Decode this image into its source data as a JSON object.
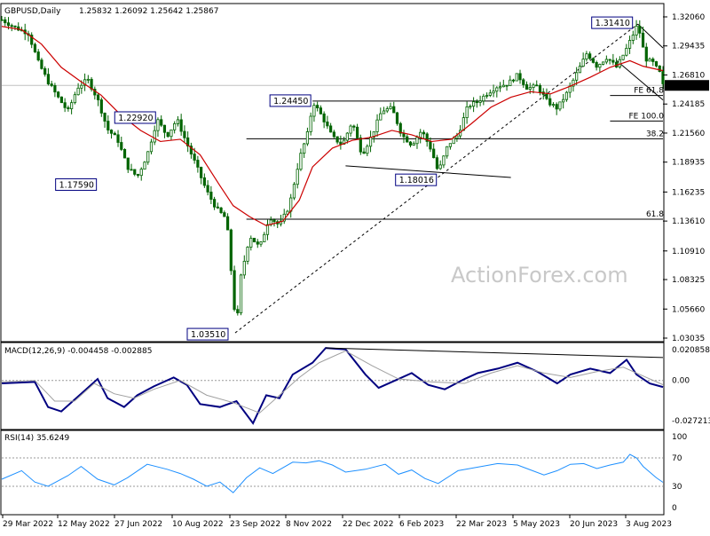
{
  "chart_data": [
    {
      "type": "candlestick",
      "title": "GBPUSD,Daily",
      "ohlc_header": "1.25832 1.26092 1.25642 1.25867",
      "current_price": "1.25867",
      "colors": {
        "candle": "#006400",
        "ma": "#cc0000",
        "trendline": "#000000",
        "level": "#444444"
      },
      "y_ticks": [
        "1.32060",
        "1.29435",
        "1.26810",
        "1.24185",
        "1.21560",
        "1.18935",
        "1.16235",
        "1.13610",
        "1.10910",
        "1.08325",
        "1.05660",
        "1.03035"
      ],
      "x_ticks": [
        "29 Mar 2022",
        "12 May 2022",
        "27 Jun 2022",
        "10 Aug 2022",
        "23 Sep 2022",
        "8 Nov 2022",
        "22 Dec 2022",
        "6 Feb 2023",
        "22 Mar 2023",
        "5 May 2023",
        "20 Jun 2023",
        "3 Aug 2023"
      ],
      "price_labels": [
        {
          "text": "1.31410",
          "t": 0.962,
          "price": 1.3141
        },
        {
          "text": "1.24450",
          "t": 0.47,
          "price": 1.2445
        },
        {
          "text": "1.22920",
          "t": 0.195,
          "price": 1.2292
        },
        {
          "text": "1.17590",
          "t": 0.17,
          "price": 1.1759
        },
        {
          "text": "1.18016",
          "t": 0.66,
          "price": 1.18016
        },
        {
          "text": "1.03510",
          "t": 0.353,
          "price": 1.0351
        }
      ],
      "levels": [
        {
          "label": "FE 61.8",
          "price": 1.2495
        },
        {
          "label": "FE 100.0",
          "price": 1.2265
        },
        {
          "label": "38.2",
          "price": 1.2105
        },
        {
          "label": "61.8",
          "price": 1.1378
        }
      ],
      "price_path": [
        [
          0.0,
          1.318
        ],
        [
          0.02,
          1.311
        ],
        [
          0.04,
          1.306
        ],
        [
          0.055,
          1.28
        ],
        [
          0.07,
          1.262
        ],
        [
          0.085,
          1.248
        ],
        [
          0.1,
          1.235
        ],
        [
          0.115,
          1.257
        ],
        [
          0.13,
          1.264
        ],
        [
          0.145,
          1.246
        ],
        [
          0.16,
          1.219
        ],
        [
          0.175,
          1.21
        ],
        [
          0.19,
          1.185
        ],
        [
          0.205,
          1.176
        ],
        [
          0.22,
          1.196
        ],
        [
          0.235,
          1.228
        ],
        [
          0.25,
          1.213
        ],
        [
          0.265,
          1.228
        ],
        [
          0.28,
          1.206
        ],
        [
          0.295,
          1.185
        ],
        [
          0.31,
          1.163
        ],
        [
          0.325,
          1.147
        ],
        [
          0.34,
          1.138
        ],
        [
          0.355,
          1.0351
        ],
        [
          0.36,
          1.081
        ],
        [
          0.375,
          1.123
        ],
        [
          0.39,
          1.112
        ],
        [
          0.405,
          1.14
        ],
        [
          0.42,
          1.132
        ],
        [
          0.435,
          1.15
        ],
        [
          0.45,
          1.192
        ],
        [
          0.465,
          1.22
        ],
        [
          0.47,
          1.2445
        ],
        [
          0.485,
          1.23
        ],
        [
          0.5,
          1.212
        ],
        [
          0.515,
          1.205
        ],
        [
          0.53,
          1.226
        ],
        [
          0.545,
          1.196
        ],
        [
          0.56,
          1.214
        ],
        [
          0.575,
          1.236
        ],
        [
          0.59,
          1.238
        ],
        [
          0.605,
          1.214
        ],
        [
          0.62,
          1.205
        ],
        [
          0.635,
          1.218
        ],
        [
          0.65,
          1.2
        ],
        [
          0.66,
          1.18016
        ],
        [
          0.675,
          1.205
        ],
        [
          0.69,
          1.214
        ],
        [
          0.705,
          1.24
        ],
        [
          0.72,
          1.244
        ],
        [
          0.735,
          1.252
        ],
        [
          0.75,
          1.258
        ],
        [
          0.765,
          1.26
        ],
        [
          0.78,
          1.268
        ],
        [
          0.795,
          1.256
        ],
        [
          0.81,
          1.258
        ],
        [
          0.825,
          1.244
        ],
        [
          0.84,
          1.238
        ],
        [
          0.855,
          1.252
        ],
        [
          0.87,
          1.27
        ],
        [
          0.885,
          1.288
        ],
        [
          0.9,
          1.276
        ],
        [
          0.915,
          1.284
        ],
        [
          0.93,
          1.275
        ],
        [
          0.945,
          1.292
        ],
        [
          0.962,
          1.3141
        ],
        [
          0.97,
          1.292
        ],
        [
          0.975,
          1.282
        ],
        [
          0.985,
          1.279
        ],
        [
          0.995,
          1.27
        ],
        [
          1.0,
          1.2587
        ]
      ],
      "ma_path": [
        [
          0.0,
          1.312
        ],
        [
          0.03,
          1.309
        ],
        [
          0.06,
          1.296
        ],
        [
          0.09,
          1.275
        ],
        [
          0.12,
          1.262
        ],
        [
          0.15,
          1.25
        ],
        [
          0.18,
          1.232
        ],
        [
          0.21,
          1.218
        ],
        [
          0.24,
          1.208
        ],
        [
          0.27,
          1.21
        ],
        [
          0.3,
          1.196
        ],
        [
          0.33,
          1.168
        ],
        [
          0.35,
          1.15
        ],
        [
          0.375,
          1.14
        ],
        [
          0.4,
          1.132
        ],
        [
          0.425,
          1.136
        ],
        [
          0.45,
          1.155
        ],
        [
          0.47,
          1.185
        ],
        [
          0.5,
          1.202
        ],
        [
          0.53,
          1.209
        ],
        [
          0.56,
          1.212
        ],
        [
          0.59,
          1.218
        ],
        [
          0.62,
          1.214
        ],
        [
          0.65,
          1.208
        ],
        [
          0.68,
          1.21
        ],
        [
          0.71,
          1.224
        ],
        [
          0.74,
          1.239
        ],
        [
          0.77,
          1.248
        ],
        [
          0.8,
          1.253
        ],
        [
          0.83,
          1.251
        ],
        [
          0.86,
          1.258
        ],
        [
          0.89,
          1.266
        ],
        [
          0.92,
          1.275
        ],
        [
          0.95,
          1.281
        ],
        [
          0.97,
          1.276
        ],
        [
          1.0,
          1.272
        ]
      ],
      "trendlines": [
        {
          "from": [
            0.353,
            1.0351
          ],
          "to": [
            0.962,
            1.3141
          ],
          "style": "dashed"
        },
        {
          "from": [
            0.962,
            1.3141
          ],
          "to": [
            1.0,
            1.2925
          ],
          "style": "solid"
        },
        {
          "from": [
            0.93,
            1.281
          ],
          "to": [
            1.0,
            1.2455
          ],
          "style": "solid"
        },
        {
          "from": [
            0.47,
            1.2445
          ],
          "to": [
            0.745,
            1.2445
          ],
          "style": "solid"
        },
        {
          "from": [
            0.52,
            1.186
          ],
          "to": [
            0.77,
            1.1755
          ],
          "style": "solid"
        },
        {
          "from": [
            0.37,
            1.2105
          ],
          "to": [
            1.0,
            1.2105
          ],
          "style": "solid"
        },
        {
          "from": [
            0.37,
            1.1378
          ],
          "to": [
            1.0,
            1.1378
          ],
          "style": "solid"
        },
        {
          "from": [
            0.92,
            1.2495
          ],
          "to": [
            1.0,
            1.2495
          ],
          "style": "solid"
        },
        {
          "from": [
            0.92,
            1.2265
          ],
          "to": [
            1.0,
            1.2265
          ],
          "style": "solid"
        }
      ]
    },
    {
      "type": "line",
      "title": "MACD(12,26,9) -0.004458 -0.002885",
      "y_ticks": [
        "0.020858",
        "0.00",
        "-0.027213"
      ],
      "series": [
        {
          "name": "MACD",
          "color": "#000080",
          "points": [
            [
              0.0,
              -0.002
            ],
            [
              0.05,
              -0.001
            ],
            [
              0.07,
              -0.018
            ],
            [
              0.09,
              -0.021
            ],
            [
              0.12,
              -0.009
            ],
            [
              0.145,
              0.001
            ],
            [
              0.16,
              -0.012
            ],
            [
              0.185,
              -0.018
            ],
            [
              0.205,
              -0.01
            ],
            [
              0.23,
              -0.004
            ],
            [
              0.26,
              0.002
            ],
            [
              0.28,
              -0.003
            ],
            [
              0.3,
              -0.016
            ],
            [
              0.33,
              -0.018
            ],
            [
              0.355,
              -0.014
            ],
            [
              0.38,
              -0.029
            ],
            [
              0.4,
              -0.01
            ],
            [
              0.42,
              -0.012
            ],
            [
              0.44,
              0.004
            ],
            [
              0.47,
              0.012
            ],
            [
              0.49,
              0.022
            ],
            [
              0.52,
              0.021
            ],
            [
              0.55,
              0.004
            ],
            [
              0.57,
              -0.005
            ],
            [
              0.6,
              0.001
            ],
            [
              0.62,
              0.005
            ],
            [
              0.645,
              -0.003
            ],
            [
              0.67,
              -0.006
            ],
            [
              0.7,
              0.001
            ],
            [
              0.72,
              0.005
            ],
            [
              0.75,
              0.008
            ],
            [
              0.78,
              0.012
            ],
            [
              0.81,
              0.006
            ],
            [
              0.84,
              -0.002
            ],
            [
              0.86,
              0.004
            ],
            [
              0.89,
              0.008
            ],
            [
              0.92,
              0.005
            ],
            [
              0.945,
              0.014
            ],
            [
              0.96,
              0.004
            ],
            [
              0.98,
              -0.002
            ],
            [
              1.0,
              -0.004458
            ]
          ]
        },
        {
          "name": "Signal",
          "color": "#a0a0a0",
          "points": [
            [
              0.0,
              -0.001
            ],
            [
              0.05,
              0.0
            ],
            [
              0.08,
              -0.014
            ],
            [
              0.11,
              -0.014
            ],
            [
              0.14,
              -0.002
            ],
            [
              0.17,
              -0.009
            ],
            [
              0.2,
              -0.012
            ],
            [
              0.23,
              -0.006
            ],
            [
              0.27,
              0.0
            ],
            [
              0.31,
              -0.01
            ],
            [
              0.35,
              -0.015
            ],
            [
              0.39,
              -0.022
            ],
            [
              0.42,
              -0.01
            ],
            [
              0.45,
              0.002
            ],
            [
              0.48,
              0.012
            ],
            [
              0.52,
              0.02
            ],
            [
              0.56,
              0.01
            ],
            [
              0.6,
              0.001
            ],
            [
              0.65,
              -0.001
            ],
            [
              0.7,
              -0.002
            ],
            [
              0.74,
              0.005
            ],
            [
              0.78,
              0.01
            ],
            [
              0.82,
              0.005
            ],
            [
              0.86,
              0.002
            ],
            [
              0.9,
              0.006
            ],
            [
              0.94,
              0.009
            ],
            [
              0.97,
              0.003
            ],
            [
              1.0,
              -0.002885
            ]
          ]
        }
      ],
      "divergence_line": {
        "from": [
          0.49,
          0.022
        ],
        "to": [
          1.0,
          0.0155
        ]
      }
    },
    {
      "type": "line",
      "title": "RSI(14) 35.6249",
      "y_ticks": [
        "100",
        "70",
        "30",
        "0"
      ],
      "series": [
        {
          "name": "RSI",
          "color": "#1e90ff",
          "points": [
            [
              0.0,
              40
            ],
            [
              0.03,
              52
            ],
            [
              0.05,
              36
            ],
            [
              0.07,
              30
            ],
            [
              0.1,
              45
            ],
            [
              0.12,
              58
            ],
            [
              0.145,
              40
            ],
            [
              0.17,
              32
            ],
            [
              0.19,
              42
            ],
            [
              0.22,
              61
            ],
            [
              0.25,
              54
            ],
            [
              0.27,
              48
            ],
            [
              0.29,
              40
            ],
            [
              0.31,
              30
            ],
            [
              0.33,
              36
            ],
            [
              0.35,
              21
            ],
            [
              0.37,
              42
            ],
            [
              0.39,
              56
            ],
            [
              0.41,
              48
            ],
            [
              0.44,
              64
            ],
            [
              0.46,
              63
            ],
            [
              0.48,
              66
            ],
            [
              0.5,
              60
            ],
            [
              0.52,
              50
            ],
            [
              0.55,
              54
            ],
            [
              0.58,
              61
            ],
            [
              0.6,
              47
            ],
            [
              0.62,
              53
            ],
            [
              0.64,
              41
            ],
            [
              0.66,
              34
            ],
            [
              0.69,
              52
            ],
            [
              0.72,
              57
            ],
            [
              0.75,
              62
            ],
            [
              0.78,
              60
            ],
            [
              0.8,
              53
            ],
            [
              0.82,
              46
            ],
            [
              0.84,
              52
            ],
            [
              0.86,
              61
            ],
            [
              0.88,
              62
            ],
            [
              0.9,
              55
            ],
            [
              0.92,
              60
            ],
            [
              0.94,
              64
            ],
            [
              0.95,
              75
            ],
            [
              0.96,
              70
            ],
            [
              0.97,
              58
            ],
            [
              0.98,
              50
            ],
            [
              0.99,
              42
            ],
            [
              1.0,
              35.6249
            ]
          ]
        }
      ]
    }
  ],
  "watermark": "ActionForex.com"
}
